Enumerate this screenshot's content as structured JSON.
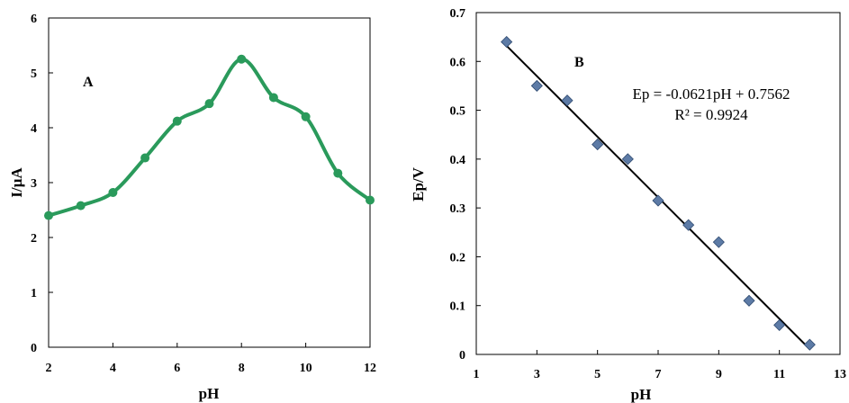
{
  "chart_data": [
    {
      "type": "line",
      "panel_label": "A",
      "xlabel": "pH",
      "ylabel": "I/µA",
      "xlim": [
        2,
        12
      ],
      "ylim": [
        0,
        6
      ],
      "xticks": [
        "2",
        "4",
        "6",
        "8",
        "10",
        "12"
      ],
      "yticks": [
        "0",
        "1",
        "2",
        "3",
        "4",
        "5",
        "6"
      ],
      "x": [
        2,
        3,
        4,
        5,
        6,
        7,
        8,
        9,
        10,
        11,
        12
      ],
      "y": [
        2.4,
        2.58,
        2.82,
        3.45,
        4.12,
        4.44,
        5.25,
        4.55,
        4.2,
        3.17,
        2.68
      ],
      "color": "#2a9a5b",
      "grid": false,
      "frame": "box"
    },
    {
      "type": "scatter",
      "panel_label": "B",
      "xlabel": "pH",
      "ylabel": "Ep/V",
      "xlim": [
        1,
        13
      ],
      "ylim": [
        0,
        0.7
      ],
      "xticks": [
        "1",
        "3",
        "5",
        "7",
        "9",
        "11",
        "13"
      ],
      "yticks": [
        "0",
        "0.1",
        "0.2",
        "0.3",
        "0.4",
        "0.5",
        "0.6",
        "0.7"
      ],
      "x": [
        2,
        3,
        4,
        5,
        6,
        7,
        8,
        9,
        10,
        11,
        12
      ],
      "y": [
        0.64,
        0.55,
        0.52,
        0.43,
        0.4,
        0.315,
        0.265,
        0.23,
        0.11,
        0.06,
        0.02
      ],
      "marker": "diamond",
      "marker_color": "#5d7ba6",
      "fit": {
        "slope": -0.0621,
        "intercept": 0.7562,
        "x_range": [
          2,
          12
        ]
      },
      "equation_text": "Ep = -0.0621pH + 0.7562",
      "r2_text": "R² = 0.9924",
      "grid": false,
      "frame": "box"
    }
  ]
}
